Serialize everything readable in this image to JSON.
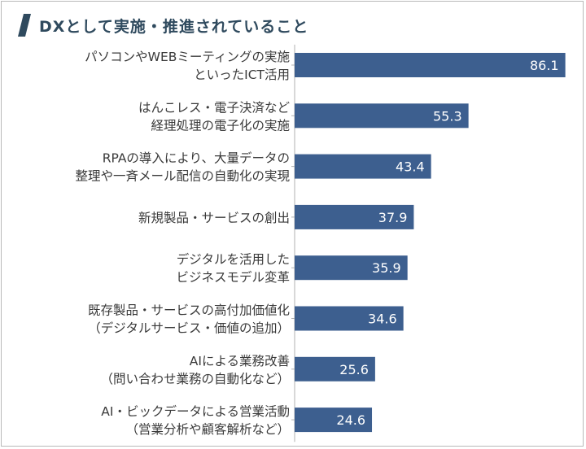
{
  "header": {
    "title": "DXとして実施・推進されていること"
  },
  "colors": {
    "bar": "#3d5f8f",
    "title": "#2f4a5e",
    "axis": "#b0b0b0"
  },
  "chart_data": {
    "type": "bar",
    "orientation": "horizontal",
    "title": "DXとして実施・推進されていること",
    "xlabel": "",
    "ylabel": "",
    "xlim": [
      0,
      95
    ],
    "grid": false,
    "categories": [
      [
        "パソコンやWEBミーティングの実施",
        "といったICT活用"
      ],
      [
        "はんこレス・電子決済など",
        "経理処理の電子化の実施"
      ],
      [
        "RPAの導入により、大量データの",
        "整理や一斉メール配信の自動化の実現"
      ],
      [
        "新規製品・サービスの創出"
      ],
      [
        "デジタルを活用した",
        "ビジネスモデル変革"
      ],
      [
        "既存製品・サービスの高付加価値化",
        "（デジタルサービス・価値の追加）"
      ],
      [
        "AIによる業務改善",
        "（問い合わせ業務の自動化など）"
      ],
      [
        "AI・ビックデータによる営業活動",
        "（営業分析や顧客解析など）"
      ]
    ],
    "values": [
      86.1,
      55.3,
      43.4,
      37.9,
      35.9,
      34.6,
      25.6,
      24.6
    ],
    "value_labels": [
      "86.1",
      "55.3",
      "43.4",
      "37.9",
      "35.9",
      "34.6",
      "25.6",
      "24.6"
    ]
  }
}
